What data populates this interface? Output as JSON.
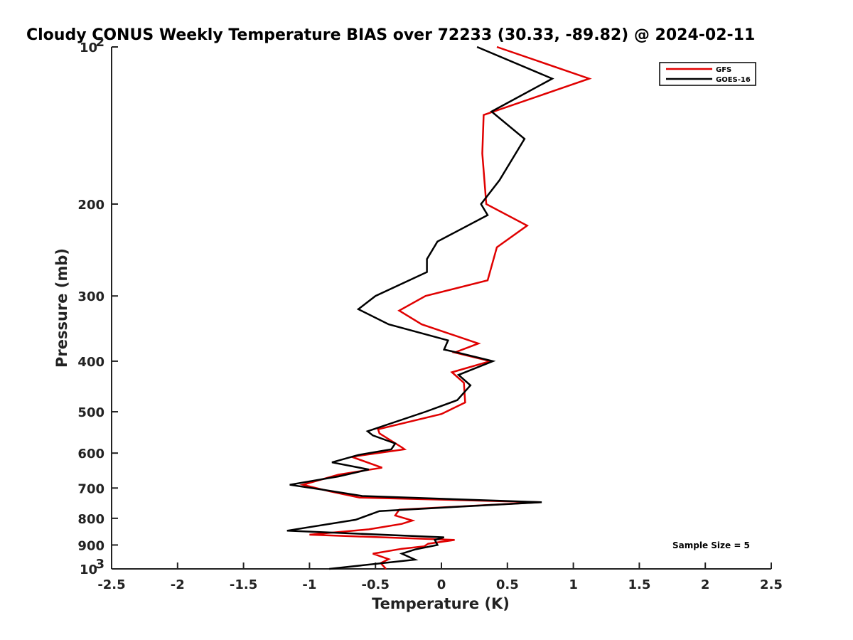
{
  "chart_data": {
    "type": "line",
    "title": "Cloudy CONUS Weekly Temperature BIAS over 72233 (30.33, -89.82) @ 2024-02-11",
    "xlabel": "Temperature (K)",
    "ylabel": "Pressure (mb)",
    "xlim": [
      -2.5,
      2.5
    ],
    "ylim": [
      100,
      1000
    ],
    "y_scale": "log",
    "y_reversed": true,
    "x_ticks": [
      "-2.5",
      "-2",
      "-1.5",
      "-1",
      "-0.5",
      "0",
      "0.5",
      "1",
      "1.5",
      "2",
      "2.5"
    ],
    "y_ticks": [
      {
        "value": 100,
        "label": "10",
        "sup": "2"
      },
      {
        "value": 200,
        "label": "200",
        "sup": ""
      },
      {
        "value": 300,
        "label": "300",
        "sup": ""
      },
      {
        "value": 400,
        "label": "400",
        "sup": ""
      },
      {
        "value": 500,
        "label": "500",
        "sup": ""
      },
      {
        "value": 600,
        "label": "600",
        "sup": ""
      },
      {
        "value": 700,
        "label": "700",
        "sup": ""
      },
      {
        "value": 800,
        "label": "800",
        "sup": ""
      },
      {
        "value": 900,
        "label": "900",
        "sup": ""
      },
      {
        "value": 1000,
        "label": "10",
        "sup": "3"
      }
    ],
    "grid": false,
    "legend_position": "top-right",
    "annotation": "Sample Size = 5",
    "series": [
      {
        "name": "GFS",
        "color": "#e00000",
        "points": [
          [
            0.42,
            100
          ],
          [
            1.12,
            115
          ],
          [
            0.32,
            135
          ],
          [
            0.31,
            160
          ],
          [
            0.34,
            200
          ],
          [
            0.65,
            220
          ],
          [
            0.42,
            242
          ],
          [
            0.35,
            280
          ],
          [
            -0.12,
            300
          ],
          [
            -0.32,
            320
          ],
          [
            -0.15,
            340
          ],
          [
            0.28,
            370
          ],
          [
            0.1,
            385
          ],
          [
            0.37,
            400
          ],
          [
            0.08,
            420
          ],
          [
            0.17,
            440
          ],
          [
            0.18,
            480
          ],
          [
            0.0,
            505
          ],
          [
            -0.48,
            540
          ],
          [
            -0.47,
            550
          ],
          [
            -0.3,
            585
          ],
          [
            -0.28,
            590
          ],
          [
            -0.68,
            610
          ],
          [
            -0.45,
            640
          ],
          [
            -0.78,
            660
          ],
          [
            -1.05,
            690
          ],
          [
            -0.85,
            710
          ],
          [
            -0.62,
            730
          ],
          [
            0.75,
            745
          ],
          [
            -0.32,
            770
          ],
          [
            -0.35,
            790
          ],
          [
            -0.22,
            808
          ],
          [
            -0.3,
            820
          ],
          [
            -0.55,
            840
          ],
          [
            -1.0,
            860
          ],
          [
            0.1,
            880
          ],
          [
            -0.1,
            895
          ],
          [
            -0.13,
            905
          ],
          [
            -0.3,
            915
          ],
          [
            -0.52,
            935
          ],
          [
            -0.4,
            958
          ],
          [
            -0.46,
            975
          ],
          [
            -0.42,
            1000
          ]
        ]
      },
      {
        "name": "GOES-16",
        "color": "#000000",
        "points": [
          [
            0.27,
            100
          ],
          [
            0.84,
            115
          ],
          [
            0.38,
            133
          ],
          [
            0.63,
            150
          ],
          [
            0.44,
            180
          ],
          [
            0.3,
            200
          ],
          [
            0.35,
            210
          ],
          [
            -0.03,
            236
          ],
          [
            -0.11,
            255
          ],
          [
            -0.11,
            270
          ],
          [
            -0.5,
            300
          ],
          [
            -0.63,
            318
          ],
          [
            -0.4,
            340
          ],
          [
            0.05,
            365
          ],
          [
            0.02,
            380
          ],
          [
            0.12,
            385
          ],
          [
            0.39,
            400
          ],
          [
            0.13,
            425
          ],
          [
            0.22,
            445
          ],
          [
            0.12,
            475
          ],
          [
            -0.12,
            500
          ],
          [
            -0.56,
            545
          ],
          [
            -0.52,
            555
          ],
          [
            -0.35,
            575
          ],
          [
            -0.38,
            590
          ],
          [
            -0.63,
            605
          ],
          [
            -0.83,
            625
          ],
          [
            -0.55,
            645
          ],
          [
            -0.78,
            665
          ],
          [
            -1.15,
            690
          ],
          [
            -0.9,
            705
          ],
          [
            -0.6,
            725
          ],
          [
            0.76,
            745
          ],
          [
            -0.47,
            775
          ],
          [
            -0.65,
            805
          ],
          [
            -1.17,
            845
          ],
          [
            0.02,
            870
          ],
          [
            -0.05,
            880
          ],
          [
            -0.03,
            900
          ],
          [
            -0.2,
            918
          ],
          [
            -0.3,
            935
          ],
          [
            -0.2,
            960
          ],
          [
            -0.85,
            1000
          ]
        ]
      }
    ]
  }
}
